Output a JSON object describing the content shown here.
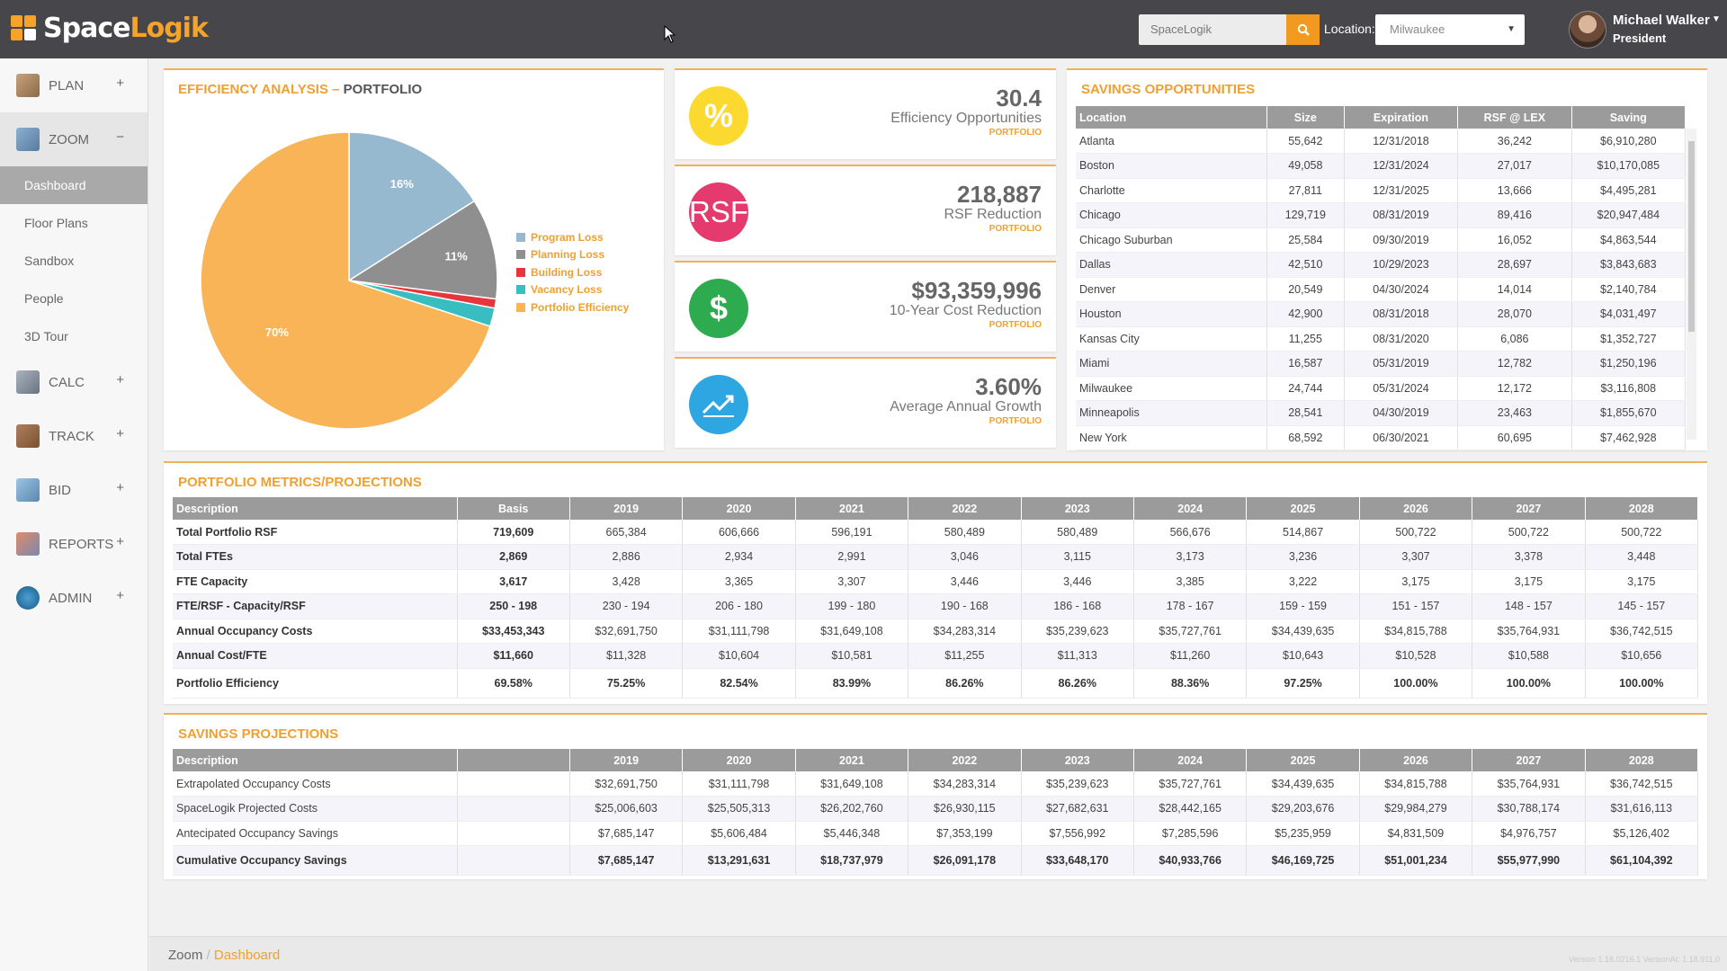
{
  "header": {
    "logo_a": "Space",
    "logo_b": "Logik",
    "search_placeholder": "SpaceLogik",
    "location_label": "Location:",
    "location_value": "Milwaukee",
    "user_name": "Michael Walker",
    "user_role": "President"
  },
  "sidebar": {
    "plan": "PLAN",
    "zoom": "ZOOM",
    "calc": "CALC",
    "track": "TRACK",
    "bid": "BID",
    "reports": "REPORTS",
    "admin": "ADMIN",
    "zoom_items": [
      "Dashboard",
      "Floor Plans",
      "Sandbox",
      "People",
      "3D Tour"
    ]
  },
  "efficiency": {
    "title_a": "EFFICIENCY ANALYSIS –",
    "title_b": " PORTFOLIO",
    "legend": [
      "Program Loss",
      "Planning Loss",
      "Building Loss",
      "Vacancy Loss",
      "Portfolio Efficiency"
    ]
  },
  "chart_data": {
    "type": "pie",
    "labels": [
      "Program Loss",
      "Planning Loss",
      "Building Loss",
      "Vacancy Loss",
      "Portfolio Efficiency"
    ],
    "values": [
      16,
      11,
      1,
      2,
      70
    ],
    "slice_labels": [
      "16%",
      "11%",
      "",
      "",
      "70%"
    ],
    "colors": [
      "#96b9cf",
      "#8f8f8f",
      "#e8343b",
      "#38bec1",
      "#f9b457"
    ]
  },
  "kpis": [
    {
      "value": "30.4",
      "label": "Efficiency Opportunities",
      "sub": "PORTFOLIO",
      "icon": "%",
      "color": "#fbd92f"
    },
    {
      "value": "218,887",
      "label": "RSF Reduction",
      "sub": "PORTFOLIO",
      "icon": "RSF",
      "color": "#e43a6d"
    },
    {
      "value": "$93,359,996",
      "label": "10-Year Cost Reduction",
      "sub": "PORTFOLIO",
      "icon": "$",
      "color": "#2eab4e"
    },
    {
      "value": "3.60%",
      "label": "Average Annual Growth",
      "sub": "PORTFOLIO",
      "icon": "chart-up",
      "color": "#2ea6e2"
    }
  ],
  "savings_opps": {
    "title": "SAVINGS OPPORTUNITIES",
    "headers": [
      "Location",
      "Size",
      "Expiration",
      "RSF @ LEX",
      "Saving"
    ],
    "rows": [
      [
        "Atlanta",
        "55,642",
        "12/31/2018",
        "36,242",
        "$6,910,280"
      ],
      [
        "Boston",
        "49,058",
        "12/31/2024",
        "27,017",
        "$10,170,085"
      ],
      [
        "Charlotte",
        "27,811",
        "12/31/2025",
        "13,666",
        "$4,495,281"
      ],
      [
        "Chicago",
        "129,719",
        "08/31/2019",
        "89,416",
        "$20,947,484"
      ],
      [
        "Chicago Suburban",
        "25,584",
        "09/30/2019",
        "16,052",
        "$4,863,544"
      ],
      [
        "Dallas",
        "42,510",
        "10/29/2023",
        "28,697",
        "$3,843,683"
      ],
      [
        "Denver",
        "20,549",
        "04/30/2024",
        "14,014",
        "$2,140,784"
      ],
      [
        "Houston",
        "42,900",
        "08/31/2018",
        "28,070",
        "$4,031,497"
      ],
      [
        "Kansas City",
        "11,255",
        "08/31/2020",
        "6,086",
        "$1,352,727"
      ],
      [
        "Miami",
        "16,587",
        "05/31/2019",
        "12,782",
        "$1,250,196"
      ],
      [
        "Milwaukee",
        "24,744",
        "05/31/2024",
        "12,172",
        "$3,116,808"
      ],
      [
        "Minneapolis",
        "28,541",
        "04/30/2019",
        "23,463",
        "$1,855,670"
      ],
      [
        "New York",
        "68,592",
        "06/30/2021",
        "60,695",
        "$7,462,928"
      ]
    ]
  },
  "metrics": {
    "title": "PORTFOLIO METRICS/PROJECTIONS",
    "headers": [
      "Description",
      "Basis",
      "2019",
      "2020",
      "2021",
      "2022",
      "2023",
      "2024",
      "2025",
      "2026",
      "2027",
      "2028"
    ],
    "rows": [
      [
        "Total Portfolio RSF",
        "719,609",
        "665,384",
        "606,666",
        "596,191",
        "580,489",
        "580,489",
        "566,676",
        "514,867",
        "500,722",
        "500,722",
        "500,722"
      ],
      [
        "Total FTEs",
        "2,869",
        "2,886",
        "2,934",
        "2,991",
        "3,046",
        "3,115",
        "3,173",
        "3,236",
        "3,307",
        "3,378",
        "3,448"
      ],
      [
        "FTE Capacity",
        "3,617",
        "3,428",
        "3,365",
        "3,307",
        "3,446",
        "3,446",
        "3,385",
        "3,222",
        "3,175",
        "3,175",
        "3,175"
      ],
      [
        "FTE/RSF - Capacity/RSF",
        "250 - 198",
        "230 - 194",
        "206 - 180",
        "199 - 180",
        "190 - 168",
        "186 - 168",
        "178 - 167",
        "159 - 159",
        "151 - 157",
        "148 - 157",
        "145 - 157"
      ],
      [
        "Annual Occupancy Costs",
        "$33,453,343",
        "$32,691,750",
        "$31,111,798",
        "$31,649,108",
        "$34,283,314",
        "$35,239,623",
        "$35,727,761",
        "$34,439,635",
        "$34,815,788",
        "$35,764,931",
        "$36,742,515"
      ],
      [
        "Annual Cost/FTE",
        "$11,660",
        "$11,328",
        "$10,604",
        "$10,581",
        "$11,255",
        "$11,313",
        "$11,260",
        "$10,643",
        "$10,528",
        "$10,588",
        "$10,656"
      ],
      [
        "Portfolio Efficiency",
        "69.58%",
        "75.25%",
        "82.54%",
        "83.99%",
        "86.26%",
        "86.26%",
        "88.36%",
        "97.25%",
        "100.00%",
        "100.00%",
        "100.00%"
      ]
    ]
  },
  "savings_proj": {
    "title": "SAVINGS PROJECTIONS",
    "headers": [
      "Description",
      "",
      "2019",
      "2020",
      "2021",
      "2022",
      "2023",
      "2024",
      "2025",
      "2026",
      "2027",
      "2028"
    ],
    "rows": [
      [
        "Extrapolated Occupancy Costs",
        "",
        "$32,691,750",
        "$31,111,798",
        "$31,649,108",
        "$34,283,314",
        "$35,239,623",
        "$35,727,761",
        "$34,439,635",
        "$34,815,788",
        "$35,764,931",
        "$36,742,515"
      ],
      [
        "SpaceLogik Projected Costs",
        "",
        "$25,006,603",
        "$25,505,313",
        "$26,202,760",
        "$26,930,115",
        "$27,682,631",
        "$28,442,165",
        "$29,203,676",
        "$29,984,279",
        "$30,788,174",
        "$31,616,113"
      ],
      [
        "Antecipated Occupancy Savings",
        "",
        "$7,685,147",
        "$5,606,484",
        "$5,446,348",
        "$7,353,199",
        "$7,556,992",
        "$7,285,596",
        "$5,235,959",
        "$4,831,509",
        "$4,976,757",
        "$5,126,402"
      ],
      [
        "Cumulative Occupancy Savings",
        "",
        "$7,685,147",
        "$13,291,631",
        "$18,737,979",
        "$26,091,178",
        "$33,648,170",
        "$40,933,766",
        "$46,169,725",
        "$51,001,234",
        "$55,977,990",
        "$61,104,392"
      ]
    ]
  },
  "footer": {
    "crumb_a": "Zoom",
    "sep": " / ",
    "crumb_b": "Dashboard",
    "version": "Version 1.18.0216.1 VersionAI: 1.18.911.0"
  }
}
